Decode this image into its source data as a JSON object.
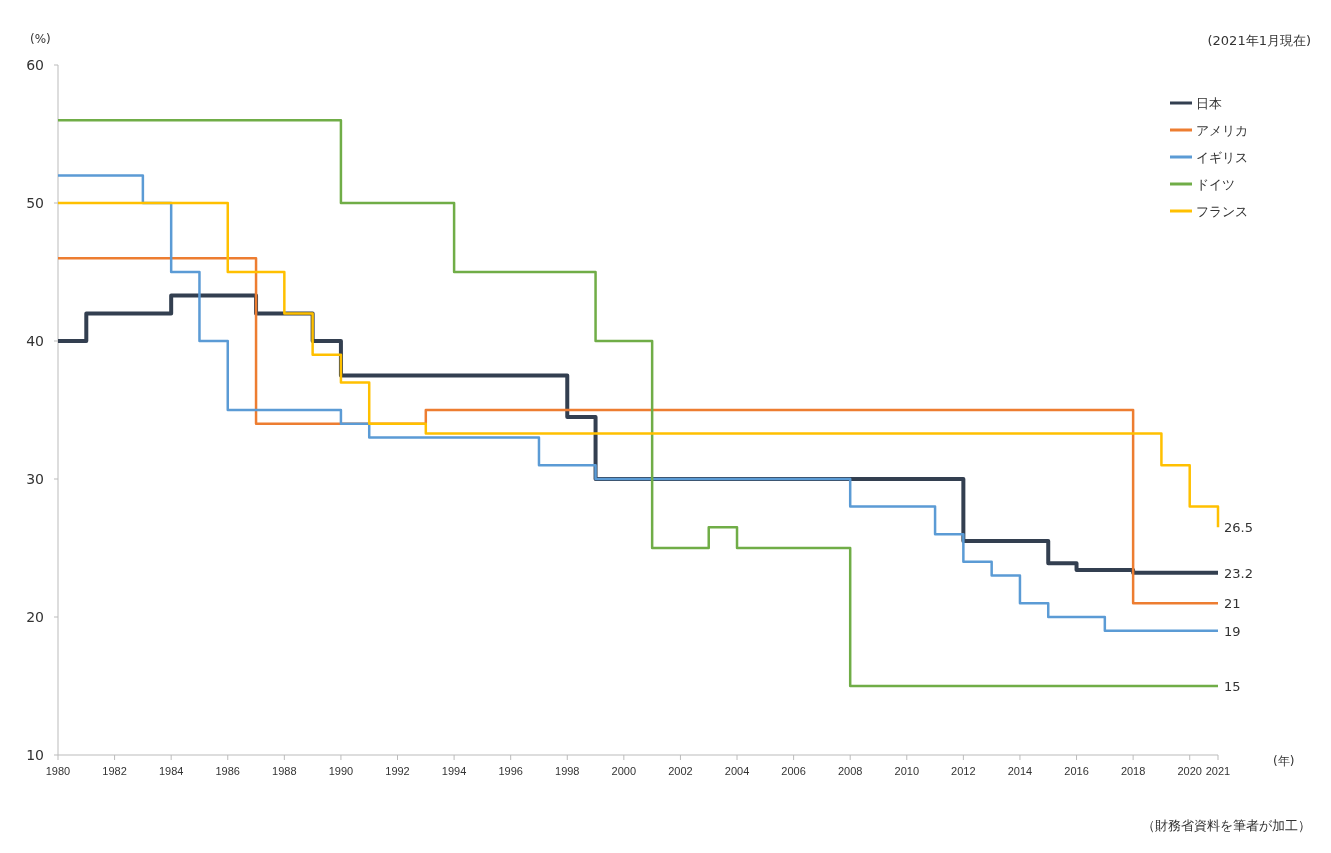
{
  "chart_data": {
    "type": "step",
    "title": null,
    "ylabel": "(%)",
    "xlabel": "(年)",
    "annotations": [
      "(2021年1月現在)",
      "（財務省資料を筆者が加工）"
    ],
    "xlim": [
      1980,
      2021
    ],
    "xticks": [
      1980,
      1982,
      1984,
      1986,
      1988,
      1990,
      1992,
      1994,
      1996,
      1998,
      2000,
      2002,
      2004,
      2006,
      2008,
      2010,
      2012,
      2014,
      2016,
      2018,
      2020,
      2021
    ],
    "ylim": [
      10,
      60
    ],
    "yticks": [
      10,
      20,
      30,
      40,
      50,
      60
    ],
    "grid": false,
    "legend": "top right",
    "line_style": "solid",
    "marker": "none",
    "series": [
      {
        "name": "日本",
        "color": "#333f50",
        "x": [
          1980,
          1981,
          1984,
          1987,
          1989,
          1990,
          1998,
          1999,
          2012,
          2015,
          2016,
          2018,
          2021
        ],
        "values": [
          40,
          42,
          43.3,
          42,
          40,
          37.5,
          34.5,
          30,
          25.5,
          23.9,
          23.4,
          23.2,
          23.2
        ],
        "value_labels": [
          null,
          null,
          null,
          null,
          null,
          null,
          null,
          null,
          null,
          null,
          null,
          null,
          "23.2"
        ]
      },
      {
        "name": "アメリカ",
        "color": "#ed7d31",
        "x": [
          1980,
          1987,
          1993,
          2018,
          2021
        ],
        "values": [
          46,
          34,
          35,
          21,
          21
        ],
        "value_labels": [
          null,
          null,
          null,
          null,
          "21"
        ]
      },
      {
        "name": "イギリス",
        "color": "#5b9bd5",
        "x": [
          1980,
          1983,
          1984,
          1985,
          1986,
          1990,
          1991,
          1997,
          1999,
          2008,
          2011,
          2012,
          2013,
          2014,
          2015,
          2017,
          2021
        ],
        "values": [
          52,
          50,
          45,
          40,
          35,
          34,
          33,
          31,
          30,
          28,
          26,
          24,
          23,
          21,
          20,
          19,
          19
        ],
        "value_labels": [
          null,
          null,
          null,
          null,
          null,
          null,
          null,
          null,
          null,
          null,
          null,
          null,
          null,
          null,
          null,
          null,
          "19"
        ]
      },
      {
        "name": "ドイツ",
        "color": "#70ad47",
        "x": [
          1980,
          1990,
          1994,
          1999,
          2001,
          2003,
          2004,
          2008,
          2021
        ],
        "values": [
          56,
          50,
          45,
          40,
          25,
          26.5,
          25,
          15,
          15
        ],
        "value_labels": [
          null,
          null,
          null,
          null,
          null,
          null,
          null,
          null,
          "15"
        ]
      },
      {
        "name": "フランス",
        "color": "#ffc000",
        "x": [
          1980,
          1986,
          1988,
          1989,
          1990,
          1991,
          1993,
          2019,
          2020,
          2021
        ],
        "values": [
          50,
          45,
          42,
          39,
          37,
          34,
          33.3,
          31,
          28,
          26.5
        ],
        "value_labels": [
          null,
          null,
          null,
          null,
          null,
          null,
          null,
          null,
          null,
          "26.5"
        ]
      }
    ]
  }
}
